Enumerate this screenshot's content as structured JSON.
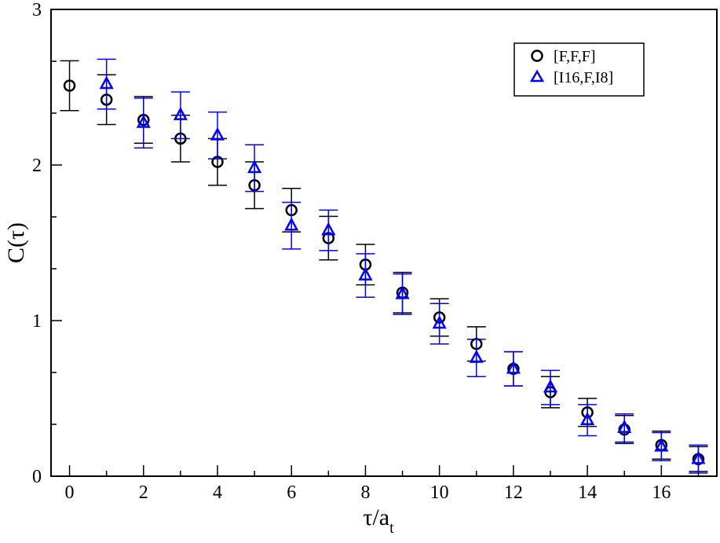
{
  "chart_data": {
    "type": "scatter",
    "title": "",
    "xlabel": "τ/a",
    "xlabel_sub": "t",
    "ylabel": "C(τ)",
    "xlim": [
      -0.5,
      17.5
    ],
    "ylim": [
      0,
      3
    ],
    "xticks": [
      "0",
      "2",
      "4",
      "6",
      "8",
      "10",
      "12",
      "14",
      "16"
    ],
    "yticks": [
      "0",
      "1",
      "2",
      "3"
    ],
    "grid": false,
    "legend_position": "top-right",
    "series": [
      {
        "name": "[F,F,F]",
        "marker": "circle",
        "color": "#000000",
        "x": [
          0,
          1,
          2,
          3,
          4,
          5,
          6,
          7,
          8,
          9,
          10,
          11,
          12,
          13,
          14,
          15,
          16,
          17
        ],
        "y": [
          2.51,
          2.42,
          2.29,
          2.17,
          2.02,
          1.87,
          1.71,
          1.53,
          1.36,
          1.18,
          1.02,
          0.85,
          0.69,
          0.54,
          0.41,
          0.3,
          0.2,
          0.11
        ],
        "err": [
          0.16,
          0.16,
          0.15,
          0.15,
          0.15,
          0.15,
          0.14,
          0.14,
          0.13,
          0.13,
          0.12,
          0.11,
          0.11,
          0.1,
          0.09,
          0.09,
          0.09,
          0.08
        ]
      },
      {
        "name": "[I16,F,I8]",
        "marker": "triangle",
        "color": "#0000ff",
        "x": [
          1,
          2,
          3,
          4,
          5,
          6,
          7,
          8,
          9,
          10,
          11,
          12,
          13,
          14,
          15,
          16,
          17
        ],
        "y": [
          2.52,
          2.27,
          2.32,
          2.19,
          1.98,
          1.61,
          1.58,
          1.29,
          1.17,
          0.98,
          0.76,
          0.69,
          0.57,
          0.36,
          0.31,
          0.19,
          0.11
        ],
        "err": [
          0.16,
          0.16,
          0.15,
          0.15,
          0.15,
          0.15,
          0.13,
          0.14,
          0.13,
          0.13,
          0.12,
          0.11,
          0.11,
          0.1,
          0.09,
          0.09,
          0.09
        ]
      }
    ]
  }
}
